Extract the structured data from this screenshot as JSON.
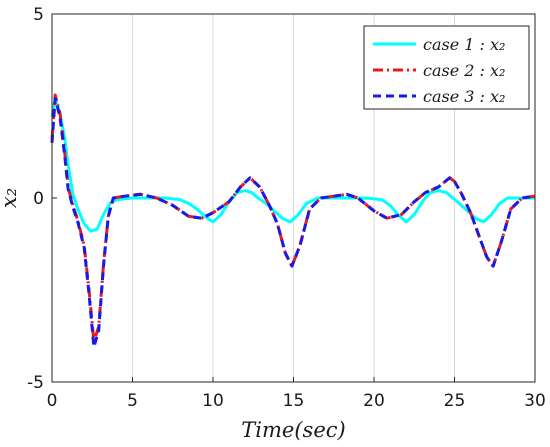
{
  "chart_data": {
    "type": "line",
    "xlabel": "Time(sec)",
    "ylabel": "x₂",
    "xlim": [
      0,
      30
    ],
    "ylim": [
      -5,
      5
    ],
    "xticks": [
      "0",
      "5",
      "10",
      "15",
      "20",
      "25",
      "30"
    ],
    "yticks": [
      "5",
      "0",
      "-5"
    ],
    "grid": "vertical",
    "legend_position": "top-right",
    "series": [
      {
        "name": "case 1 : x₂",
        "color": "#00ffff",
        "style": "solid",
        "x": [
          0,
          0.2,
          0.5,
          0.8,
          1.0,
          1.3,
          1.6,
          2.0,
          2.4,
          2.8,
          3.2,
          3.6,
          4.0,
          5.0,
          6.0,
          7.0,
          8.0,
          8.5,
          9.0,
          9.5,
          10.0,
          10.5,
          11.0,
          11.5,
          12.0,
          12.4,
          12.8,
          13.3,
          13.8,
          14.3,
          14.8,
          15.3,
          15.8,
          16.5,
          17.5,
          18.5,
          19.5,
          20.5,
          21.0,
          21.5,
          22.0,
          22.5,
          23.0,
          23.5,
          24.0,
          24.5,
          24.9,
          25.3,
          25.8,
          26.3,
          26.8,
          27.3,
          27.8,
          28.3,
          29.0,
          30.0
        ],
        "y": [
          2.2,
          2.7,
          2.3,
          1.6,
          0.9,
          0.1,
          -0.3,
          -0.7,
          -0.9,
          -0.85,
          -0.45,
          -0.15,
          -0.05,
          0.0,
          0.0,
          0.0,
          -0.05,
          -0.15,
          -0.3,
          -0.5,
          -0.65,
          -0.45,
          -0.1,
          0.15,
          0.2,
          0.15,
          0.0,
          -0.15,
          -0.35,
          -0.55,
          -0.65,
          -0.45,
          -0.15,
          0.0,
          0.0,
          0.0,
          0.0,
          -0.05,
          -0.2,
          -0.45,
          -0.65,
          -0.45,
          -0.1,
          0.15,
          0.2,
          0.15,
          0.0,
          -0.15,
          -0.35,
          -0.55,
          -0.65,
          -0.45,
          -0.15,
          0.0,
          0.0,
          0.0
        ]
      },
      {
        "name": "case 2 : x₂",
        "color": "#e81a1a",
        "style": "dashdot",
        "x": [
          0,
          0.2,
          0.5,
          0.8,
          1.0,
          1.3,
          1.6,
          2.0,
          2.3,
          2.6,
          2.9,
          3.2,
          3.5,
          3.8,
          4.5,
          5.5,
          6.5,
          7.5,
          8.5,
          9.3,
          10.0,
          11.0,
          11.7,
          12.3,
          12.9,
          13.5,
          14.0,
          14.5,
          14.9,
          15.4,
          16.0,
          16.7,
          17.5,
          18.3,
          19.0,
          20.0,
          20.8,
          21.7,
          22.5,
          23.2,
          24.0,
          24.7,
          25.0,
          25.4,
          26.0,
          26.5,
          27.0,
          27.4,
          27.9,
          28.5,
          29.2,
          30.0
        ],
        "y": [
          1.6,
          2.8,
          2.3,
          1.2,
          0.3,
          -0.2,
          -0.6,
          -1.3,
          -2.5,
          -3.9,
          -3.5,
          -1.8,
          -0.5,
          0.0,
          0.05,
          0.1,
          0.0,
          -0.2,
          -0.5,
          -0.55,
          -0.4,
          -0.1,
          0.3,
          0.55,
          0.3,
          -0.2,
          -0.7,
          -1.5,
          -1.85,
          -1.3,
          -0.3,
          0.0,
          0.05,
          0.1,
          0.0,
          -0.35,
          -0.55,
          -0.45,
          -0.1,
          0.15,
          0.3,
          0.55,
          0.45,
          0.15,
          -0.4,
          -1.0,
          -1.6,
          -1.85,
          -1.2,
          -0.3,
          0.0,
          0.05
        ]
      },
      {
        "name": "case 3 : x₂",
        "color": "#1a1ae8",
        "style": "dashed",
        "x": [
          0,
          0.2,
          0.5,
          0.8,
          1.0,
          1.3,
          1.6,
          2.0,
          2.3,
          2.6,
          2.9,
          3.2,
          3.5,
          3.8,
          4.5,
          5.5,
          6.5,
          7.5,
          8.5,
          9.3,
          10.0,
          11.0,
          11.7,
          12.3,
          12.9,
          13.5,
          14.0,
          14.5,
          14.9,
          15.4,
          16.0,
          16.7,
          17.5,
          18.3,
          19.0,
          20.0,
          20.8,
          21.7,
          22.5,
          23.2,
          24.0,
          24.7,
          25.0,
          25.4,
          26.0,
          26.5,
          27.0,
          27.4,
          27.9,
          28.5,
          29.2,
          30.0
        ],
        "y": [
          1.5,
          2.7,
          2.2,
          1.1,
          0.25,
          -0.25,
          -0.65,
          -1.35,
          -2.6,
          -4.05,
          -3.6,
          -1.85,
          -0.5,
          0.0,
          0.05,
          0.1,
          0.0,
          -0.2,
          -0.5,
          -0.55,
          -0.4,
          -0.1,
          0.3,
          0.55,
          0.3,
          -0.2,
          -0.7,
          -1.5,
          -1.85,
          -1.3,
          -0.3,
          0.0,
          0.05,
          0.1,
          0.0,
          -0.35,
          -0.55,
          -0.45,
          -0.1,
          0.15,
          0.3,
          0.55,
          0.45,
          0.15,
          -0.4,
          -1.0,
          -1.6,
          -1.85,
          -1.2,
          -0.3,
          0.0,
          0.05
        ]
      }
    ]
  }
}
